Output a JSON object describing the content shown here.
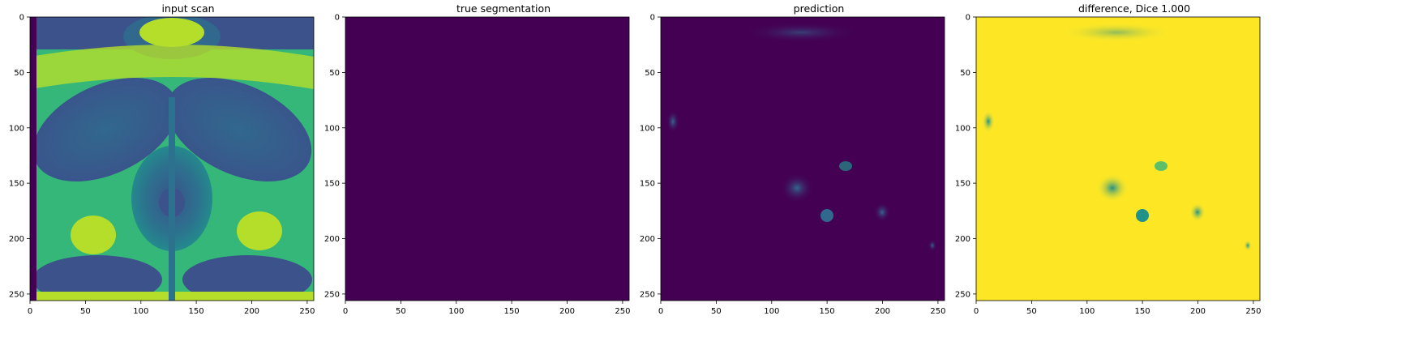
{
  "figure": {
    "panels": [
      {
        "id": "input-scan",
        "title": "input scan",
        "kind": "scan"
      },
      {
        "id": "true-segmentation",
        "title": "true segmentation",
        "kind": "uniform"
      },
      {
        "id": "prediction",
        "title": "prediction",
        "kind": "prediction"
      },
      {
        "id": "difference",
        "title": "difference, Dice 1.000",
        "kind": "difference"
      }
    ],
    "axes": {
      "x_ticks": [
        0,
        50,
        100,
        150,
        200,
        250
      ],
      "y_ticks": [
        0,
        50,
        100,
        150,
        200,
        250
      ],
      "xlim": [
        0,
        256
      ],
      "ylim": [
        256,
        0
      ]
    },
    "colors": {
      "viridis_dark": "#440154",
      "viridis_blue": "#31688e",
      "viridis_teal": "#21918c",
      "viridis_green": "#35b779",
      "viridis_yellow": "#fde725",
      "axis": "#000000",
      "background": "#ffffff"
    }
  }
}
